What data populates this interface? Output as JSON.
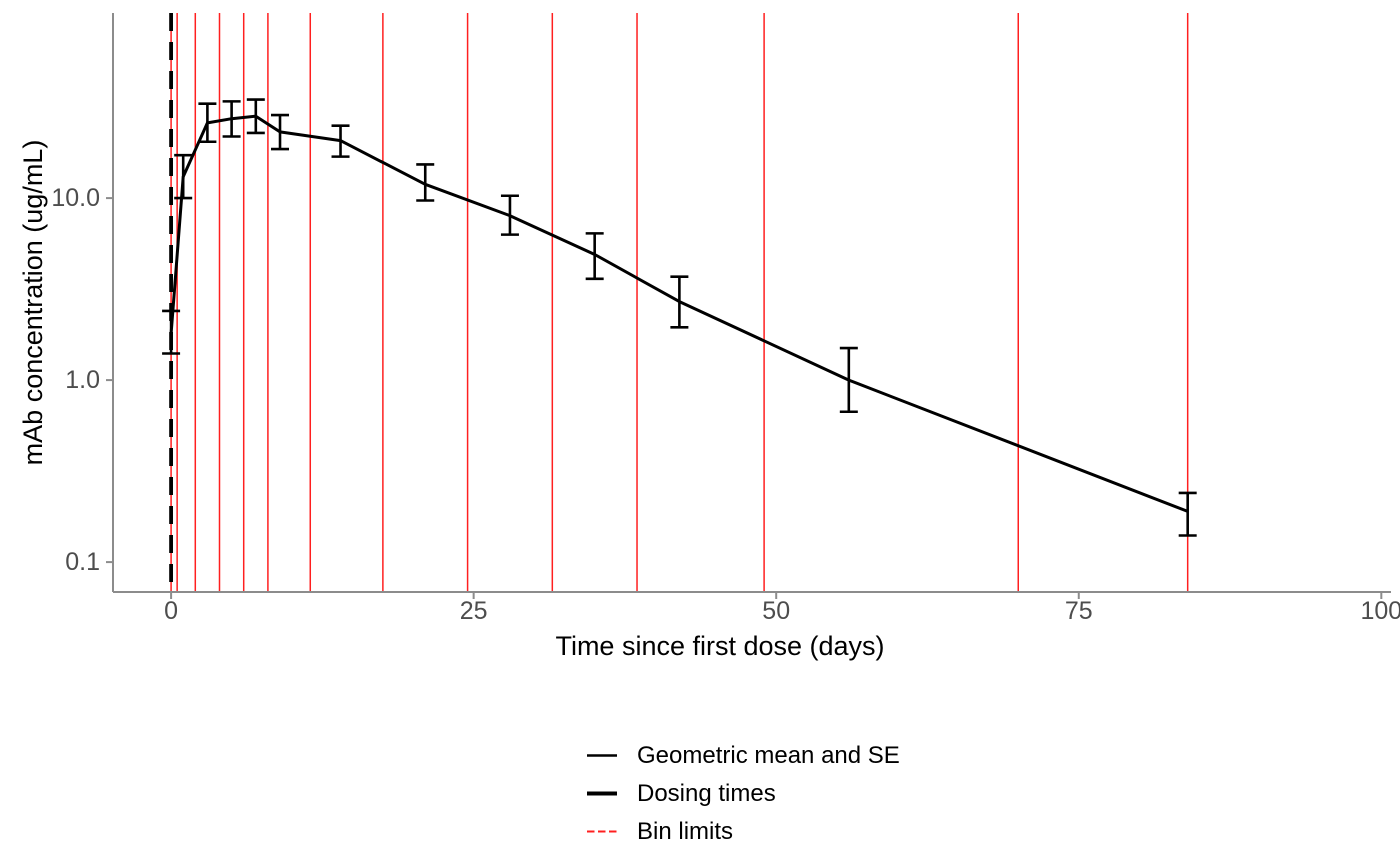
{
  "chart_data": {
    "type": "line",
    "title": "",
    "xlabel": "Time since first dose (days)",
    "ylabel": "mAb concentration (ug/mL)",
    "x_scale": "linear",
    "y_scale": "log10",
    "xlim": [
      -4.8,
      100.8
    ],
    "ylim": [
      0.0685,
      104
    ],
    "grid": false,
    "legend_position": "bottom",
    "x_ticks": [
      {
        "value": 0,
        "label": "0"
      },
      {
        "value": 25,
        "label": "25"
      },
      {
        "value": 50,
        "label": "50"
      },
      {
        "value": 75,
        "label": "75"
      },
      {
        "value": 100,
        "label": "100"
      }
    ],
    "y_ticks": [
      {
        "value": 0.1,
        "label": "0.1"
      },
      {
        "value": 1,
        "label": "1.0"
      },
      {
        "value": 10,
        "label": "10.0"
      }
    ],
    "series": [
      {
        "name": "Geometric mean and SE",
        "points": [
          {
            "day": 0,
            "gm": 1.8,
            "se_lo": 1.4,
            "se_hi": 2.4
          },
          {
            "day": 1,
            "gm": 13.1,
            "se_lo": 10.0,
            "se_hi": 17.2
          },
          {
            "day": 3,
            "gm": 25.9,
            "se_lo": 20.4,
            "se_hi": 33.0
          },
          {
            "day": 5,
            "gm": 27.3,
            "se_lo": 21.8,
            "se_hi": 34.0
          },
          {
            "day": 7,
            "gm": 28.2,
            "se_lo": 22.8,
            "se_hi": 34.8
          },
          {
            "day": 9,
            "gm": 23.1,
            "se_lo": 18.6,
            "se_hi": 28.6
          },
          {
            "day": 14,
            "gm": 20.7,
            "se_lo": 16.9,
            "se_hi": 25.0
          },
          {
            "day": 21,
            "gm": 11.9,
            "se_lo": 9.7,
            "se_hi": 15.3
          },
          {
            "day": 28,
            "gm": 8.0,
            "se_lo": 6.3,
            "se_hi": 10.3
          },
          {
            "day": 35,
            "gm": 4.9,
            "se_lo": 3.6,
            "se_hi": 6.4
          },
          {
            "day": 42,
            "gm": 2.7,
            "se_lo": 1.95,
            "se_hi": 3.7
          },
          {
            "day": 56,
            "gm": 1.0,
            "se_lo": 0.67,
            "se_hi": 1.5
          },
          {
            "day": 84,
            "gm": 0.19,
            "se_lo": 0.14,
            "se_hi": 0.24
          }
        ]
      }
    ],
    "dosing_times": [
      0
    ],
    "bin_limits": [
      0,
      0.5,
      2,
      4,
      6,
      8,
      11.5,
      17.5,
      24.5,
      31.5,
      38.5,
      49,
      70,
      84
    ],
    "colors": {
      "mean_line": "#000000",
      "dosing_line": "#000000",
      "bin_line": "#FF1F1F",
      "axis_line": "#8C8C8C",
      "tick_label": "#4D4D4D",
      "axis_title": "#000000"
    },
    "legend": [
      {
        "label": "Geometric mean and SE",
        "color": "#000000",
        "dash": "",
        "width": 2.6
      },
      {
        "label": "Dosing times",
        "color": "#000000",
        "dash": "",
        "width": 4
      },
      {
        "label": "Bin limits",
        "color": "#FF1F1F",
        "dash": "7.5,3.5",
        "width": 2
      }
    ]
  }
}
